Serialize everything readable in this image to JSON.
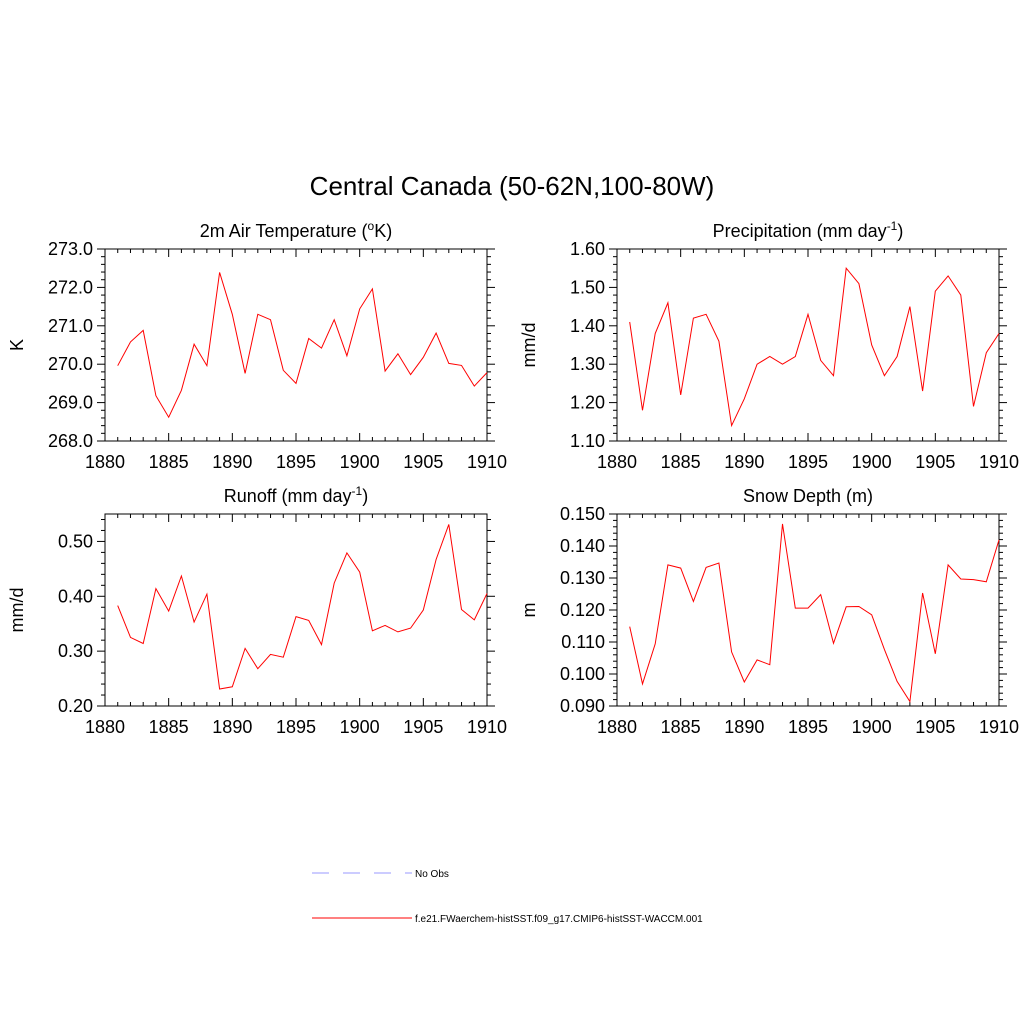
{
  "figure": {
    "title": "Central Canada (50-62N,100-80W)"
  },
  "colors": {
    "model": "#ff0000",
    "obs": "#9999ff",
    "axis": "#000000"
  },
  "legend": {
    "entries": [
      {
        "label": "No Obs",
        "style": "dashed",
        "color": "#9999ff"
      },
      {
        "label": "f.e21.FWaerchem-histSST.f09_g17.CMIP6-histSST-WACCM.001",
        "style": "solid",
        "color": "#ff0000"
      }
    ]
  },
  "chart_data": [
    {
      "type": "line",
      "title_main": "2m Air Temperature (",
      "title_sup": "o",
      "title_rest": "K)",
      "ylabel": "K",
      "xlim": [
        1880,
        1910
      ],
      "ylim": [
        268.0,
        273.0
      ],
      "xticks": [
        1880,
        1885,
        1890,
        1895,
        1900,
        1905,
        1910
      ],
      "yticks": [
        "268.0",
        "269.0",
        "270.0",
        "271.0",
        "272.0",
        "273.0"
      ],
      "x": [
        1881,
        1882,
        1883,
        1884,
        1885,
        1886,
        1887,
        1888,
        1889,
        1890,
        1891,
        1892,
        1893,
        1894,
        1895,
        1896,
        1897,
        1898,
        1899,
        1900,
        1901,
        1902,
        1903,
        1904,
        1905,
        1906,
        1907,
        1908,
        1909,
        1910
      ],
      "series": [
        {
          "name": "f.e21.FWaerchem-histSST.f09_g17.CMIP6-histSST-WACCM.001",
          "values": [
            269.96,
            270.58,
            270.88,
            269.18,
            268.62,
            269.32,
            270.52,
            269.96,
            272.39,
            271.3,
            269.76,
            271.3,
            271.16,
            269.84,
            269.5,
            270.67,
            270.42,
            271.16,
            270.22,
            271.44,
            271.96,
            269.82,
            270.27,
            269.73,
            270.18,
            270.81,
            270.02,
            269.97,
            269.43,
            269.78
          ]
        }
      ]
    },
    {
      "type": "line",
      "title_main": "Precipitation (mm day",
      "title_sup": "-1",
      "title_rest": ")",
      "ylabel": "mm/d",
      "xlim": [
        1880,
        1910
      ],
      "ylim": [
        1.1,
        1.6
      ],
      "xticks": [
        1880,
        1885,
        1890,
        1895,
        1900,
        1905,
        1910
      ],
      "yticks": [
        "1.10",
        "1.20",
        "1.30",
        "1.40",
        "1.50",
        "1.60"
      ],
      "x": [
        1881,
        1882,
        1883,
        1884,
        1885,
        1886,
        1887,
        1888,
        1889,
        1890,
        1891,
        1892,
        1893,
        1894,
        1895,
        1896,
        1897,
        1898,
        1899,
        1900,
        1901,
        1902,
        1903,
        1904,
        1905,
        1906,
        1907,
        1908,
        1909,
        1910
      ],
      "series": [
        {
          "name": "f.e21.FWaerchem-histSST.f09_g17.CMIP6-histSST-WACCM.001",
          "values": [
            1.41,
            1.18,
            1.38,
            1.46,
            1.22,
            1.42,
            1.43,
            1.36,
            1.14,
            1.21,
            1.3,
            1.32,
            1.3,
            1.32,
            1.43,
            1.31,
            1.27,
            1.55,
            1.51,
            1.35,
            1.27,
            1.32,
            1.45,
            1.23,
            1.49,
            1.53,
            1.48,
            1.19,
            1.33,
            1.38
          ]
        }
      ]
    },
    {
      "type": "line",
      "title_main": "Runoff (mm day",
      "title_sup": "-1",
      "title_rest": ")",
      "ylabel": "mm/d",
      "xlim": [
        1880,
        1910
      ],
      "ylim": [
        0.2,
        0.55
      ],
      "xticks": [
        1880,
        1885,
        1890,
        1895,
        1900,
        1905,
        1910
      ],
      "yticks": [
        "0.20",
        "0.30",
        "0.40",
        "0.50"
      ],
      "x": [
        1881,
        1882,
        1883,
        1884,
        1885,
        1886,
        1887,
        1888,
        1889,
        1890,
        1891,
        1892,
        1893,
        1894,
        1895,
        1896,
        1897,
        1898,
        1899,
        1900,
        1901,
        1902,
        1903,
        1904,
        1905,
        1906,
        1907,
        1908,
        1909,
        1910
      ],
      "series": [
        {
          "name": "f.e21.FWaerchem-histSST.f09_g17.CMIP6-histSST-WACCM.001",
          "values": [
            0.383,
            0.325,
            0.314,
            0.414,
            0.373,
            0.437,
            0.353,
            0.404,
            0.231,
            0.235,
            0.305,
            0.268,
            0.294,
            0.289,
            0.363,
            0.356,
            0.312,
            0.424,
            0.479,
            0.444,
            0.337,
            0.347,
            0.335,
            0.342,
            0.375,
            0.467,
            0.531,
            0.376,
            0.357,
            0.405
          ]
        }
      ]
    },
    {
      "type": "line",
      "title_main": "Snow Depth (m)",
      "title_sup": "",
      "title_rest": "",
      "ylabel": "m",
      "xlim": [
        1880,
        1910
      ],
      "ylim": [
        0.09,
        0.15
      ],
      "xticks": [
        1880,
        1885,
        1890,
        1895,
        1900,
        1905,
        1910
      ],
      "yticks": [
        "0.090",
        "0.100",
        "0.110",
        "0.120",
        "0.130",
        "0.140",
        "0.150"
      ],
      "x": [
        1881,
        1882,
        1883,
        1884,
        1885,
        1886,
        1887,
        1888,
        1889,
        1890,
        1891,
        1892,
        1893,
        1894,
        1895,
        1896,
        1897,
        1898,
        1899,
        1900,
        1901,
        1902,
        1903,
        1904,
        1905,
        1906,
        1907,
        1908,
        1909,
        1910
      ],
      "series": [
        {
          "name": "f.e21.FWaerchem-histSST.f09_g17.CMIP6-histSST-WACCM.001",
          "values": [
            0.1148,
            0.0969,
            0.1094,
            0.1341,
            0.1331,
            0.1227,
            0.1333,
            0.1347,
            0.1069,
            0.0975,
            0.1044,
            0.1029,
            0.1469,
            0.1206,
            0.1206,
            0.1248,
            0.1096,
            0.121,
            0.1211,
            0.1185,
            0.1077,
            0.0977,
            0.0914,
            0.1253,
            0.1063,
            0.1341,
            0.1297,
            0.1295,
            0.1288,
            0.1419
          ]
        }
      ]
    }
  ]
}
